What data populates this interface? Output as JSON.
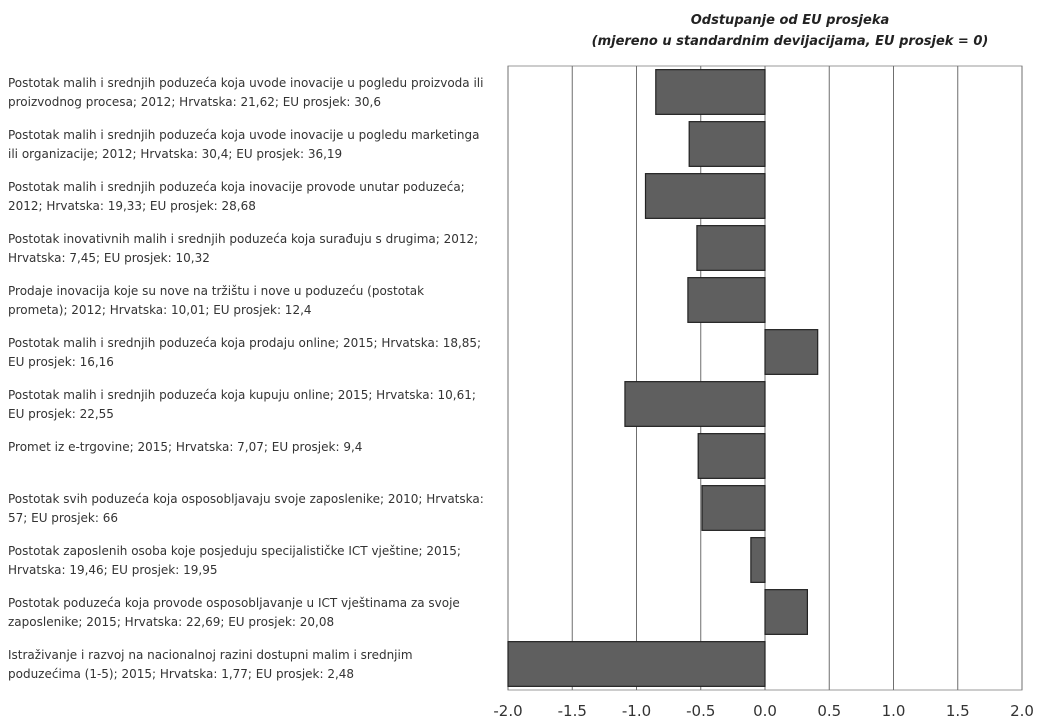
{
  "chart_data": {
    "type": "bar",
    "orientation": "horizontal",
    "title": "Odstupanje od EU prosjeka",
    "subtitle": "(mjereno u standardnim devijacijama, EU prosjek = 0)",
    "xlim": [
      -2.0,
      2.0
    ],
    "xticks": [
      "-2.0",
      "-1.5",
      "-1.0",
      "-0.5",
      "0.0",
      "0.5",
      "1.0",
      "1.5",
      "2.0"
    ],
    "grid": true,
    "bar_color": "#5f5f5f",
    "categories": [
      "Postotak malih i srednjih poduzeća koja uvode inovacije u pogledu proizvoda ili proizvodnog procesa; 2012; Hrvatska: 21,62; EU prosjek: 30,6",
      "Postotak malih i srednjih poduzeća koja uvode inovacije u pogledu marketinga ili organizacije; 2012; Hrvatska: 30,4; EU prosjek: 36,19",
      "Postotak malih i srednjih poduzeća koja inovacije provode unutar poduzeća; 2012; Hrvatska: 19,33; EU prosjek: 28,68",
      "Postotak inovativnih malih i srednjih poduzeća koja surađuju s drugima; 2012; Hrvatska: 7,45; EU prosjek: 10,32",
      "Prodaje inovacija koje su nove na tržištu i nove u poduzeću (postotak prometa); 2012; Hrvatska: 10,01; EU prosjek: 12,4",
      "Postotak malih i srednjih poduzeća koja prodaju online; 2015; Hrvatska: 18,85; EU prosjek: 16,16",
      "Postotak malih i srednjih poduzeća koja kupuju online; 2015; Hrvatska: 10,61; EU prosjek: 22,55",
      "Promet iz e-trgovine; 2015; Hrvatska: 7,07; EU prosjek: 9,4",
      "Postotak svih poduzeća koja osposobljavaju svoje zaposlenike; 2010; Hrvatska: 57; EU prosjek: 66",
      "Postotak zaposlenih osoba koje posjeduju specijalističke ICT vještine; 2015; Hrvatska: 19,46; EU prosjek: 19,95",
      "Postotak poduzeća koja provode osposobljavanje u ICT vještinama za svoje zaposlenike; 2015; Hrvatska: 22,69; EU prosjek: 20,08",
      "Istraživanje i razvoj na nacionalnoj razini dostupni malim i srednjim poduzećima (1-5); 2015; Hrvatska: 1,77; EU prosjek: 2,48"
    ],
    "values": [
      -0.85,
      -0.59,
      -0.93,
      -0.53,
      -0.6,
      0.41,
      -1.09,
      -0.52,
      -0.49,
      -0.11,
      0.33,
      -2.0
    ]
  }
}
